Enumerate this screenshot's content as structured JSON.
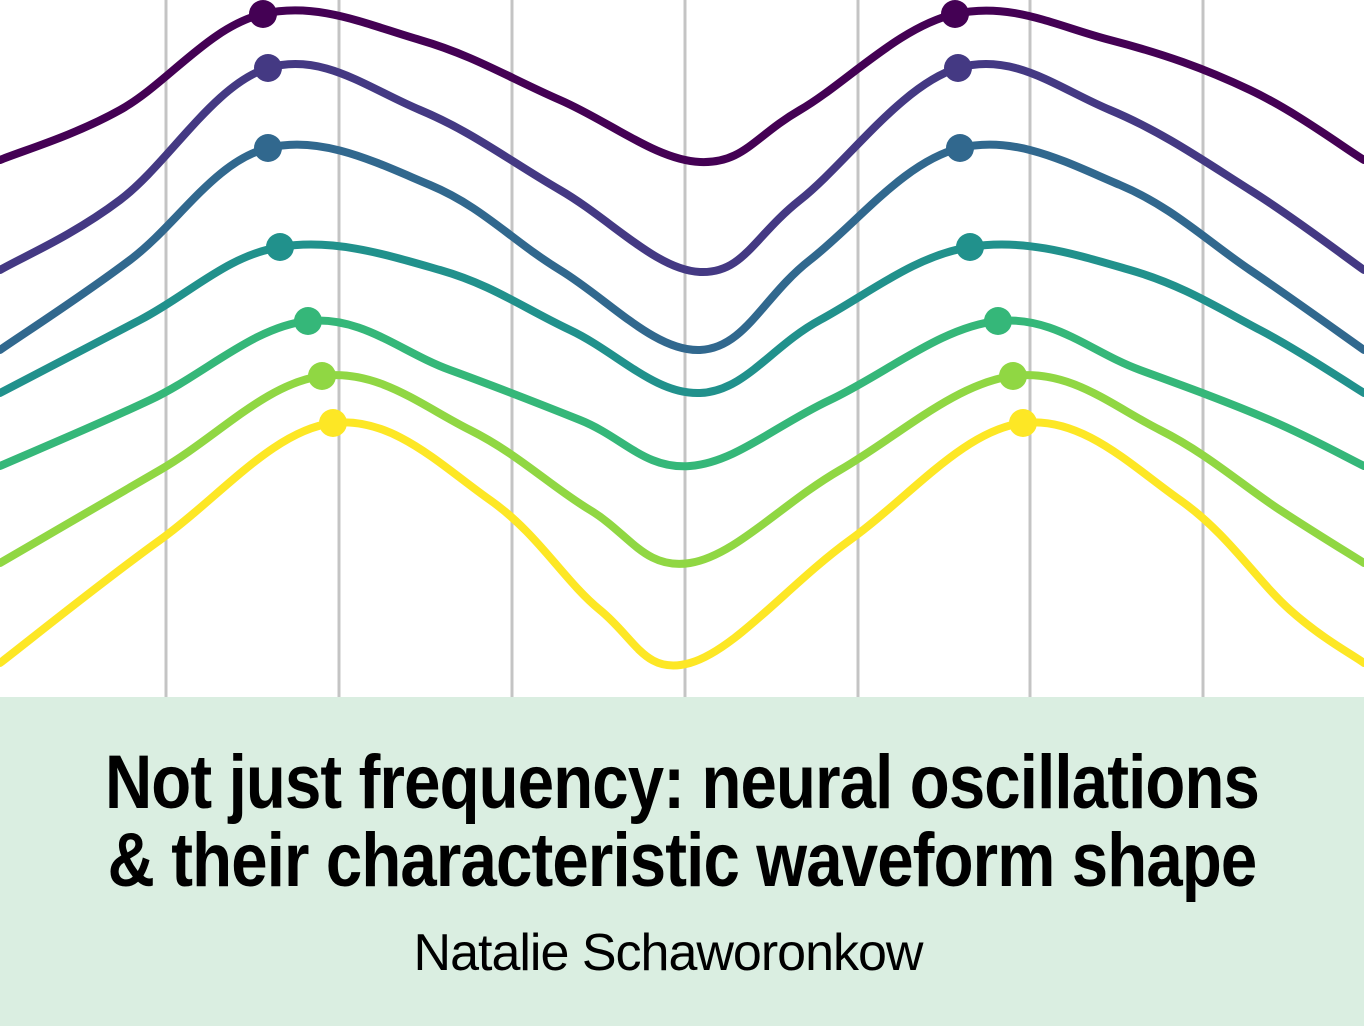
{
  "title": {
    "line1": "Not just frequency: neural oscillations",
    "line2": "& their characteristic waveform shape"
  },
  "author": "Natalie Schaworonkow",
  "colors": {
    "panel_background": "#daeee1",
    "gridline": "#c4c4c4",
    "wave_series": [
      "#440154",
      "#443983",
      "#31688e",
      "#21918c",
      "#35b779",
      "#90d743",
      "#fde725"
    ]
  },
  "figure": {
    "description_type": "stacked-waveforms",
    "waves": [
      {
        "color": "#440154",
        "peak_markers": 2
      },
      {
        "color": "#443983",
        "peak_markers": 2
      },
      {
        "color": "#31688e",
        "peak_markers": 2
      },
      {
        "color": "#21918c",
        "peak_markers": 2
      },
      {
        "color": "#35b779",
        "peak_markers": 2
      },
      {
        "color": "#90d743",
        "peak_markers": 2
      },
      {
        "color": "#fde725",
        "peak_markers": 2
      }
    ],
    "vertical_gridlines": 7
  }
}
